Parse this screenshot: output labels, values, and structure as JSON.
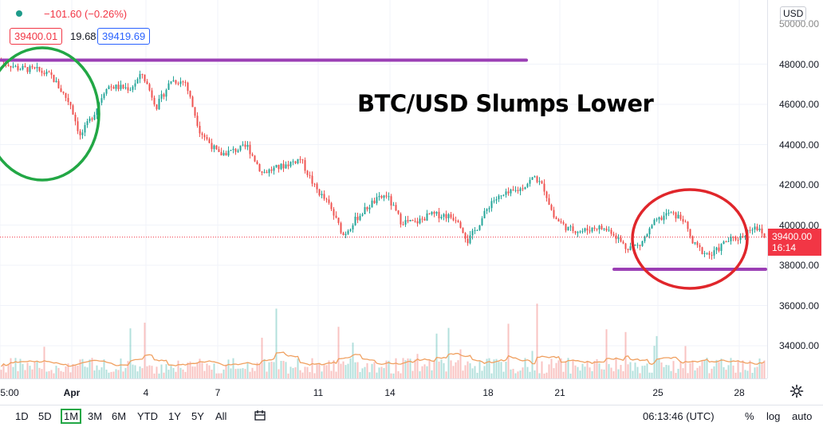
{
  "legend": {
    "change": "−101.60 (−0.26%)",
    "bid": "39400.01",
    "spread": "19.68",
    "ask": "39419.69"
  },
  "currency_selector": "USD",
  "headline": "BTC/USD Slumps Lower",
  "current_price": {
    "value": "39400.00",
    "countdown": "16:14"
  },
  "toolbar": {
    "ranges": [
      "1D",
      "5D",
      "1M",
      "3M",
      "6M",
      "YTD",
      "1Y",
      "5Y",
      "All"
    ],
    "active_range": "1M",
    "time": "06:13:46 (UTC)",
    "percent": "%",
    "log": "log",
    "auto": "auto"
  },
  "colors": {
    "up": "#26a69a",
    "down": "#ef5350",
    "level": "#9b3fb5",
    "green_circle": "#22a745",
    "red_circle": "#e0262b",
    "volume_ma": "#f0a060"
  },
  "chart_data": {
    "type": "candlestick",
    "title": "BTC/USD Slumps Lower",
    "ylim": [
      32000,
      50000
    ],
    "y_ticks": [
      "48000.00",
      "46000.00",
      "44000.00",
      "42000.00",
      "40000.00",
      "38000.00",
      "36000.00",
      "34000.00"
    ],
    "y_tick_top_partial": "50000.00",
    "x_ticks": [
      "5:00",
      "Apr",
      "4",
      "7",
      "11",
      "14",
      "18",
      "21",
      "25",
      "28"
    ],
    "price_path": [
      [
        0,
        48200
      ],
      [
        8,
        47800
      ],
      [
        16,
        47700
      ],
      [
        22,
        47400
      ],
      [
        30,
        46000
      ],
      [
        34,
        44400
      ],
      [
        40,
        45600
      ],
      [
        45,
        46900
      ],
      [
        55,
        46800
      ],
      [
        60,
        47500
      ],
      [
        66,
        45900
      ],
      [
        72,
        47200
      ],
      [
        78,
        47100
      ],
      [
        84,
        44700
      ],
      [
        92,
        43500
      ],
      [
        98,
        43700
      ],
      [
        104,
        43900
      ],
      [
        110,
        42600
      ],
      [
        118,
        42900
      ],
      [
        126,
        43300
      ],
      [
        132,
        41900
      ],
      [
        138,
        41000
      ],
      [
        144,
        39500
      ],
      [
        150,
        40400
      ],
      [
        156,
        41100
      ],
      [
        162,
        41500
      ],
      [
        168,
        40200
      ],
      [
        174,
        40100
      ],
      [
        180,
        40500
      ],
      [
        186,
        40500
      ],
      [
        192,
        40300
      ],
      [
        196,
        39200
      ],
      [
        200,
        39900
      ],
      [
        206,
        41200
      ],
      [
        212,
        41500
      ],
      [
        218,
        41800
      ],
      [
        224,
        42400
      ],
      [
        228,
        41800
      ],
      [
        232,
        40400
      ],
      [
        238,
        39800
      ],
      [
        244,
        39700
      ],
      [
        250,
        39900
      ],
      [
        256,
        39700
      ],
      [
        262,
        38900
      ],
      [
        268,
        39000
      ],
      [
        274,
        40100
      ],
      [
        280,
        40600
      ],
      [
        286,
        40300
      ],
      [
        290,
        39100
      ],
      [
        294,
        38700
      ],
      [
        298,
        38500
      ],
      [
        304,
        39200
      ],
      [
        310,
        39400
      ],
      [
        316,
        40000
      ],
      [
        320,
        39400
      ]
    ],
    "levels": [
      {
        "price": 48200,
        "from": 0,
        "to": 220
      },
      {
        "price": 37800,
        "from": 256,
        "to": 320
      }
    ],
    "annotations": [
      {
        "shape": "ellipse",
        "color": "green",
        "center": [
          14,
          46700
        ]
      },
      {
        "shape": "ellipse",
        "color": "red",
        "center": [
          285,
          39300
        ]
      }
    ],
    "volume": "shown at bottom with moving average line"
  }
}
